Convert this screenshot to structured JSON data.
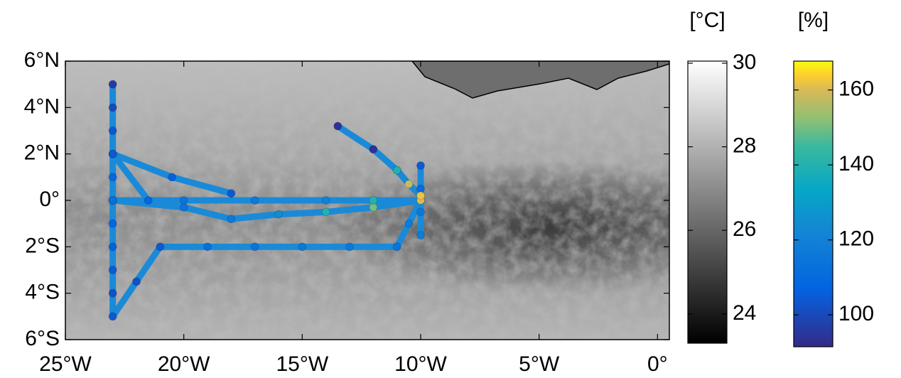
{
  "chart_data": {
    "type": "scatter",
    "xlim": [
      -25,
      0.5
    ],
    "ylim": [
      -6,
      6
    ],
    "xticks": [
      {
        "value": -25,
        "label": "25°W"
      },
      {
        "value": -20,
        "label": "20°W"
      },
      {
        "value": -15,
        "label": "15°W"
      },
      {
        "value": -10,
        "label": "10°W"
      },
      {
        "value": -5,
        "label": "5°W"
      },
      {
        "value": 0,
        "label": "0°"
      }
    ],
    "yticks": [
      {
        "value": -6,
        "label": "6°S"
      },
      {
        "value": -4,
        "label": "4°S"
      },
      {
        "value": -2,
        "label": "2°S"
      },
      {
        "value": 0,
        "label": "0°"
      },
      {
        "value": 2,
        "label": "2°N"
      },
      {
        "value": 4,
        "label": "4°N"
      },
      {
        "value": 6,
        "label": "6°N"
      }
    ],
    "x": [
      -23,
      -23,
      -23,
      -23,
      -23,
      -23,
      -23,
      -23,
      -23,
      -23,
      -23,
      -22,
      -21,
      -19,
      -17,
      -15,
      -13,
      -11,
      -10.5,
      -10,
      null,
      -23,
      -21.5,
      null,
      -23,
      -20.5,
      -18,
      null,
      -23,
      -20,
      -18,
      -16,
      -14,
      -12,
      -10,
      null,
      -23,
      -20,
      -17,
      -14,
      -12,
      -10,
      null,
      -10,
      -10,
      -10,
      -10,
      null,
      -13.5,
      -12,
      -11,
      null,
      -11,
      -10.5,
      -10
    ],
    "y": [
      5,
      4,
      3,
      2,
      1,
      0,
      -1,
      -2,
      -3,
      -4,
      -5,
      -3.5,
      -2,
      -2,
      -2,
      -2,
      -2,
      -2,
      -1,
      0,
      null,
      2,
      0,
      null,
      2,
      1,
      0.3,
      null,
      0,
      -0.3,
      -0.8,
      -0.6,
      -0.5,
      -0.3,
      0,
      null,
      0,
      0,
      0,
      0,
      0,
      0,
      null,
      1.5,
      0.5,
      -0.5,
      -1.5,
      null,
      3.2,
      2.2,
      1.3,
      null,
      1.3,
      0.7,
      0.2
    ],
    "values": [
      96,
      100,
      104,
      106,
      108,
      110,
      108,
      106,
      104,
      102,
      104,
      102,
      104,
      112,
      114,
      116,
      116,
      114,
      118,
      125,
      null,
      104,
      108,
      null,
      104,
      106,
      104,
      null,
      112,
      114,
      116,
      124,
      140,
      150,
      158,
      null,
      112,
      114,
      116,
      120,
      140,
      160,
      null,
      104,
      110,
      116,
      118,
      null,
      94,
      94,
      100,
      null,
      140,
      158,
      162
    ],
    "colorbars": [
      {
        "label": "[°C]",
        "colormap": "gray",
        "lim": [
          23.3,
          30.05
        ],
        "ticks": [
          24,
          26,
          28,
          30
        ]
      },
      {
        "label": "[%]",
        "colormap": "parula",
        "lim": [
          91.5,
          167.7
        ],
        "ticks": [
          100,
          120,
          140,
          160
        ]
      }
    ]
  }
}
